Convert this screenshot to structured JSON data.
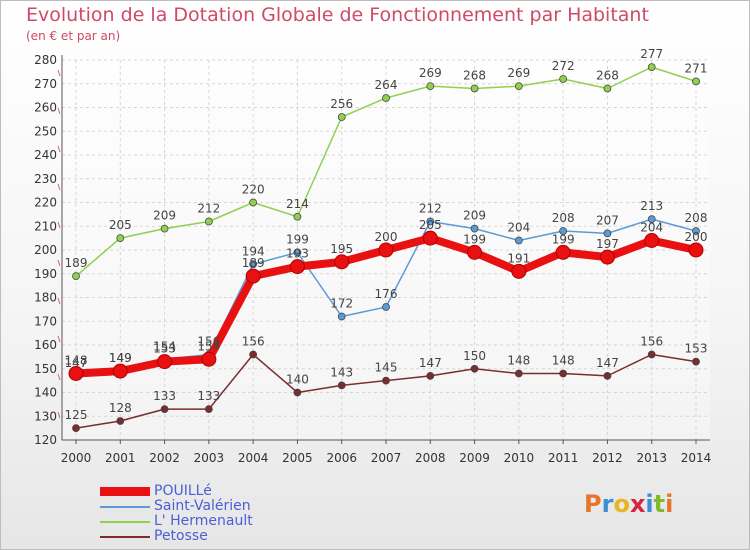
{
  "header": {
    "title": "Evolution de la Dotation Globale de Fonctionnement par Habitant",
    "subtitle": "(en € et par an)"
  },
  "logo": {
    "text": "Proxiti",
    "letter_colors": [
      "#e8732a",
      "#3c8fd4",
      "#e8b51f",
      "#d8243c",
      "#3c8fd4",
      "#7fba2e",
      "#e8732a"
    ]
  },
  "chart_data": {
    "type": "line",
    "x": [
      2000,
      2001,
      2002,
      2003,
      2004,
      2005,
      2006,
      2007,
      2008,
      2009,
      2010,
      2011,
      2012,
      2013,
      2014
    ],
    "ylim": [
      120,
      280
    ],
    "yticks": [
      120,
      130,
      140,
      150,
      160,
      170,
      180,
      190,
      200,
      210,
      220,
      230,
      240,
      250,
      260,
      270,
      280
    ],
    "grid": true,
    "legend_position": "bottom-left",
    "series": [
      {
        "name": "POUILLé",
        "color": "#e81010",
        "values": [
          148,
          149,
          153,
          154,
          189,
          193,
          195,
          200,
          205,
          199,
          191,
          199,
          197,
          204,
          200
        ]
      },
      {
        "name": "Saint-Valérien",
        "color": "#5b9bd5",
        "values": [
          147,
          149,
          154,
          156,
          194,
          199,
          172,
          176,
          212,
          209,
          204,
          208,
          207,
          213,
          208
        ]
      },
      {
        "name": "L' Hermenault",
        "color": "#8fd14f",
        "values": [
          189,
          205,
          209,
          212,
          220,
          214,
          256,
          264,
          269,
          268,
          269,
          272,
          268,
          277,
          271
        ]
      },
      {
        "name": "Petosse",
        "color": "#7b2d2d",
        "values": [
          125,
          128,
          133,
          133,
          156,
          140,
          143,
          145,
          147,
          150,
          148,
          148,
          147,
          156,
          153
        ]
      }
    ]
  }
}
